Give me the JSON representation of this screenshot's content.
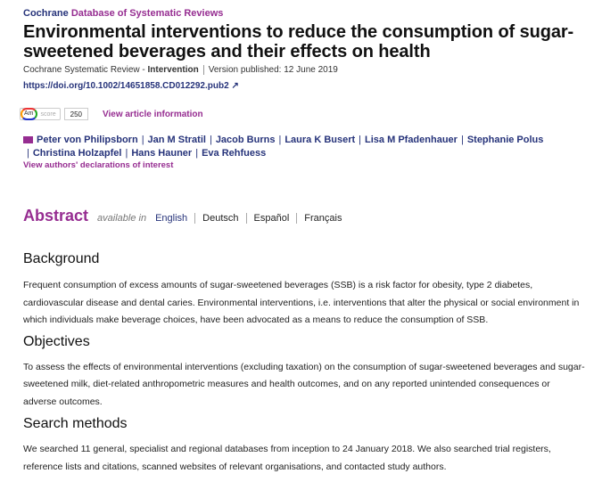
{
  "header": {
    "brand": "Cochrane",
    "journal": "Database of Systematic Reviews",
    "title": "Environmental interventions to reduce the consumption of sugar-sweetened beverages and their effects on health",
    "review_type": "Cochrane Systematic Review - ",
    "review_kind": "Intervention",
    "version": "Version published: 12 June 2019",
    "doi": "https://doi.org/10.1002/14651858.CD012292.pub2",
    "external_icon": "external-link-icon"
  },
  "altmetric": {
    "logo": "Am",
    "label": "score",
    "score": "250",
    "view_info": "View article information"
  },
  "authors": [
    "Peter von Philipsborn",
    "Jan M Stratil",
    "Jacob Burns",
    "Laura K Busert",
    "Lisa M Pfadenhauer",
    "Stephanie Polus",
    "Christina Holzapfel",
    "Hans Hauner",
    "Eva Rehfuess"
  ],
  "declarations": "View authors' declarations of interest",
  "abstract": {
    "title": "Abstract",
    "available_in": "available in",
    "languages": [
      "English",
      "Deutsch",
      "Español",
      "Français"
    ]
  },
  "sections": [
    {
      "heading": "Background",
      "text": "Frequent consumption of excess amounts of sugar-sweetened beverages (SSB) is a risk factor for obesity, type 2 diabetes, cardiovascular disease and dental caries. Environmental interventions, i.e. interventions that alter the physical or social environment in which individuals make beverage choices, have been advocated as a means to reduce the consumption of SSB."
    },
    {
      "heading": "Objectives",
      "text": "To assess the effects of environmental interventions (excluding taxation) on the consumption of sugar-sweetened beverages and sugar-sweetened milk, diet-related anthropometric measures and health outcomes, and on any reported unintended consequences or adverse outcomes."
    },
    {
      "heading": "Search methods",
      "text": "We searched 11 general, specialist and regional databases from inception to 24 January 2018. We also searched trial registers, reference lists and citations, scanned websites of relevant organisations, and contacted study authors."
    }
  ]
}
